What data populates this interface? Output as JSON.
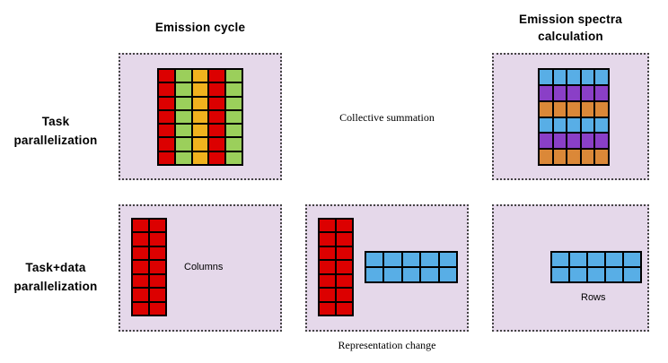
{
  "headings": {
    "emission_cycle": "Emission cycle",
    "emission_spectra_line1": "Emission spectra",
    "emission_spectra_line2": "calculation"
  },
  "row_labels": {
    "task_line1": "Task",
    "task_line2": "parallelization",
    "taskdata_line1": "Task+data",
    "taskdata_line2": "parallelization"
  },
  "captions": {
    "collective_summation": "Collective summation",
    "columns": "Columns",
    "rows": "Rows",
    "representation_change": "Representation change"
  },
  "colors": {
    "panel_bg": "#e5d8ea",
    "red": "#dc0000",
    "green": "#9bcf5b",
    "orange_yellow": "#f0b21e",
    "blue": "#58aee6",
    "purple": "#8a3fc7",
    "orange": "#db8838"
  },
  "grids": {
    "task_emission": {
      "rows": 7,
      "column_colors": [
        "red",
        "green",
        "orange_yellow",
        "red",
        "green"
      ]
    },
    "task_spectra": {
      "columns": 5,
      "row_colors": [
        "blue",
        "purple",
        "orange",
        "blue",
        "purple",
        "orange"
      ]
    },
    "columns_block": {
      "rows": 7,
      "columns": 2,
      "color": "red"
    },
    "rows_block": {
      "rows": 2,
      "columns": 5,
      "color": "blue"
    }
  }
}
